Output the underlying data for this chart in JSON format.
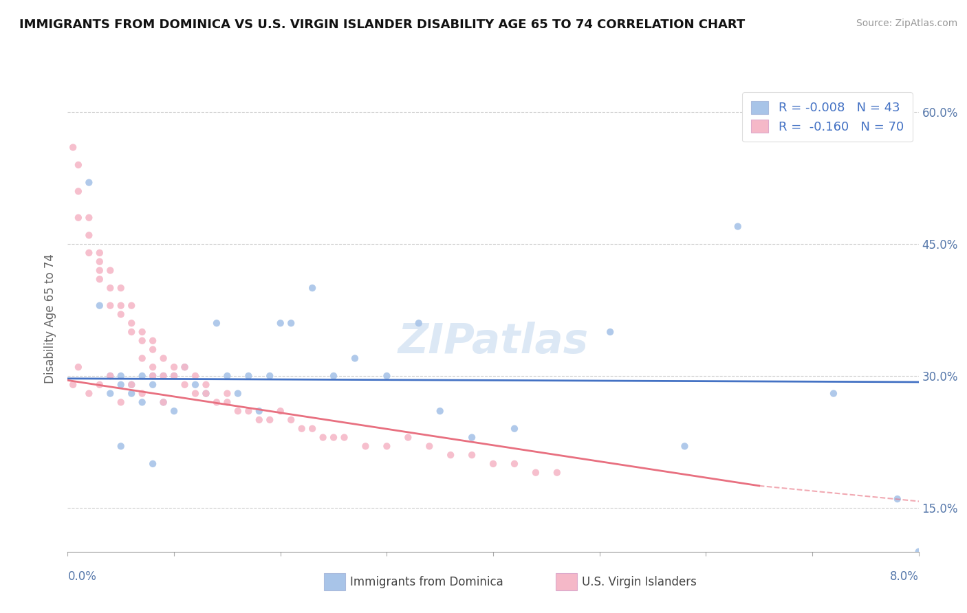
{
  "title": "IMMIGRANTS FROM DOMINICA VS U.S. VIRGIN ISLANDER DISABILITY AGE 65 TO 74 CORRELATION CHART",
  "source": "Source: ZipAtlas.com",
  "ylabel": "Disability Age 65 to 74",
  "xlim": [
    0.0,
    0.08
  ],
  "ylim": [
    0.1,
    0.63
  ],
  "legend_blue_label": "R = -0.008   N = 43",
  "legend_pink_label": "R =  -0.160   N = 70",
  "series1_name": "Immigrants from Dominica",
  "series2_name": "U.S. Virgin Islanders",
  "blue_color": "#a8c4e8",
  "pink_color": "#f5b8c8",
  "blue_line_color": "#4472c4",
  "pink_line_color": "#e87080",
  "legend_text_color": "#4472c4",
  "watermark": "ZIPatlas",
  "blue_dots_x": [
    0.002,
    0.003,
    0.004,
    0.004,
    0.005,
    0.005,
    0.006,
    0.006,
    0.007,
    0.007,
    0.008,
    0.008,
    0.009,
    0.009,
    0.01,
    0.01,
    0.011,
    0.012,
    0.013,
    0.014,
    0.015,
    0.016,
    0.017,
    0.018,
    0.019,
    0.021,
    0.023,
    0.025,
    0.027,
    0.03,
    0.033,
    0.035,
    0.038,
    0.042,
    0.051,
    0.058,
    0.063,
    0.072,
    0.078,
    0.08,
    0.005,
    0.008,
    0.02
  ],
  "blue_dots_y": [
    0.52,
    0.38,
    0.3,
    0.28,
    0.3,
    0.29,
    0.28,
    0.29,
    0.3,
    0.27,
    0.3,
    0.29,
    0.27,
    0.3,
    0.26,
    0.3,
    0.31,
    0.29,
    0.28,
    0.36,
    0.3,
    0.28,
    0.3,
    0.26,
    0.3,
    0.36,
    0.4,
    0.3,
    0.32,
    0.3,
    0.36,
    0.26,
    0.23,
    0.24,
    0.35,
    0.22,
    0.47,
    0.28,
    0.16,
    0.1,
    0.22,
    0.2,
    0.36
  ],
  "pink_dots_x": [
    0.0005,
    0.001,
    0.001,
    0.001,
    0.002,
    0.002,
    0.002,
    0.003,
    0.003,
    0.003,
    0.003,
    0.004,
    0.004,
    0.004,
    0.005,
    0.005,
    0.005,
    0.006,
    0.006,
    0.006,
    0.007,
    0.007,
    0.007,
    0.008,
    0.008,
    0.008,
    0.009,
    0.009,
    0.01,
    0.01,
    0.011,
    0.011,
    0.012,
    0.012,
    0.013,
    0.013,
    0.014,
    0.015,
    0.015,
    0.016,
    0.017,
    0.018,
    0.019,
    0.02,
    0.021,
    0.022,
    0.023,
    0.024,
    0.025,
    0.026,
    0.028,
    0.03,
    0.032,
    0.034,
    0.036,
    0.038,
    0.04,
    0.042,
    0.044,
    0.046,
    0.0005,
    0.001,
    0.002,
    0.003,
    0.004,
    0.005,
    0.006,
    0.007,
    0.008,
    0.009
  ],
  "pink_dots_y": [
    0.56,
    0.54,
    0.48,
    0.51,
    0.44,
    0.48,
    0.46,
    0.42,
    0.44,
    0.43,
    0.41,
    0.4,
    0.38,
    0.42,
    0.37,
    0.38,
    0.4,
    0.36,
    0.38,
    0.35,
    0.34,
    0.32,
    0.35,
    0.33,
    0.31,
    0.34,
    0.3,
    0.32,
    0.3,
    0.31,
    0.29,
    0.31,
    0.28,
    0.3,
    0.28,
    0.29,
    0.27,
    0.27,
    0.28,
    0.26,
    0.26,
    0.25,
    0.25,
    0.26,
    0.25,
    0.24,
    0.24,
    0.23,
    0.23,
    0.23,
    0.22,
    0.22,
    0.23,
    0.22,
    0.21,
    0.21,
    0.2,
    0.2,
    0.19,
    0.19,
    0.29,
    0.31,
    0.28,
    0.29,
    0.3,
    0.27,
    0.29,
    0.28,
    0.3,
    0.27
  ],
  "blue_trend": [
    0.0,
    0.08,
    0.297,
    0.293
  ],
  "pink_trend_solid": [
    0.0,
    0.065,
    0.295,
    0.175
  ],
  "pink_trend_dash": [
    0.065,
    0.082,
    0.175,
    0.155
  ],
  "ytick_positions": [
    0.15,
    0.3,
    0.45,
    0.6
  ],
  "ytick_labels": [
    "15.0%",
    "30.0%",
    "45.0%",
    "60.0%"
  ],
  "xtick_positions": [
    0.0,
    0.01,
    0.02,
    0.03,
    0.04,
    0.05,
    0.06,
    0.07,
    0.08
  ]
}
